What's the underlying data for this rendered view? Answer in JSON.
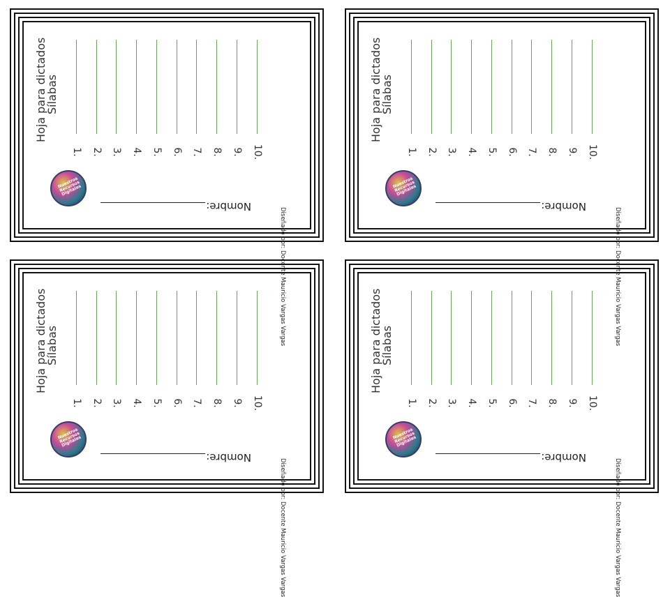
{
  "worksheet": {
    "title": "Hoja para dictados",
    "subtitle": "Sílabas",
    "name_label": "Nombre:",
    "credit": "Diseñado por: Docente Mauricio Vargas Vargas",
    "logo_text": "Nuestros Recursos Digitales",
    "items": [
      "1.",
      "2.",
      "3.",
      "4.",
      "5.",
      "6.",
      "7.",
      "8.",
      "9.",
      "10."
    ]
  },
  "colors": {
    "border": "#111111",
    "writing_line": "#6aa35a"
  }
}
